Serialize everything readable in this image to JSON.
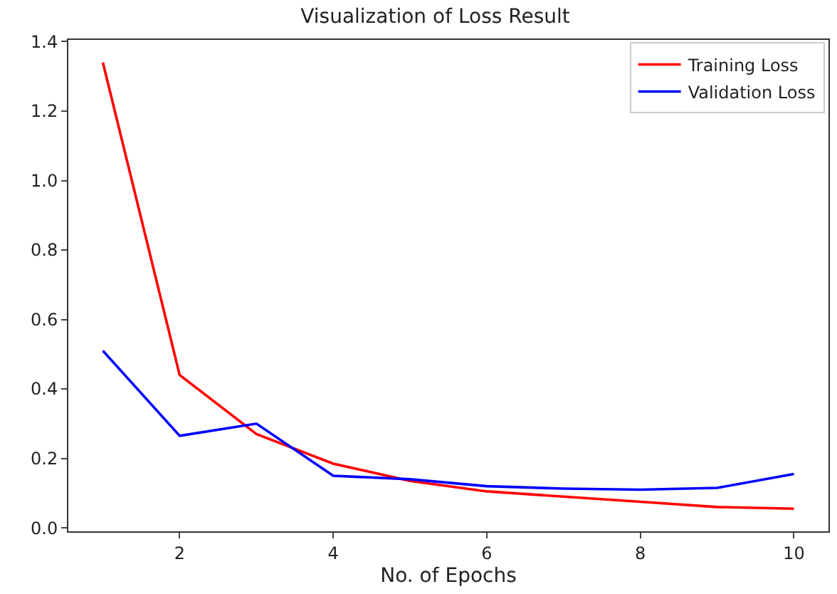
{
  "chart_data": {
    "type": "line",
    "title": "Visualization of Loss Result",
    "xlabel": "No. of Epochs",
    "x": [
      1,
      2,
      3,
      4,
      5,
      6,
      7,
      8,
      9,
      10
    ],
    "series": [
      {
        "name": "Training Loss",
        "color": "#ff0000",
        "values": [
          1.34,
          0.44,
          0.27,
          0.185,
          0.135,
          0.105,
          0.09,
          0.075,
          0.06,
          0.055
        ]
      },
      {
        "name": "Validation Loss",
        "color": "#0000ff",
        "values": [
          0.51,
          0.265,
          0.3,
          0.15,
          0.14,
          0.12,
          0.113,
          0.11,
          0.115,
          0.155
        ]
      }
    ],
    "xlim": [
      0.55,
      10.45
    ],
    "xticks": [
      2,
      4,
      6,
      8,
      10
    ],
    "ylim": [
      -0.01,
      1.405
    ],
    "yticks": [
      {
        "value": 0,
        "label": "0.0"
      },
      0.2,
      0.4,
      0.6,
      0.8,
      {
        "value": 1,
        "label": "1.0"
      },
      1.2,
      1.4
    ],
    "grid": false,
    "legend": "top right",
    "marker": "none",
    "line_style": "solid"
  }
}
